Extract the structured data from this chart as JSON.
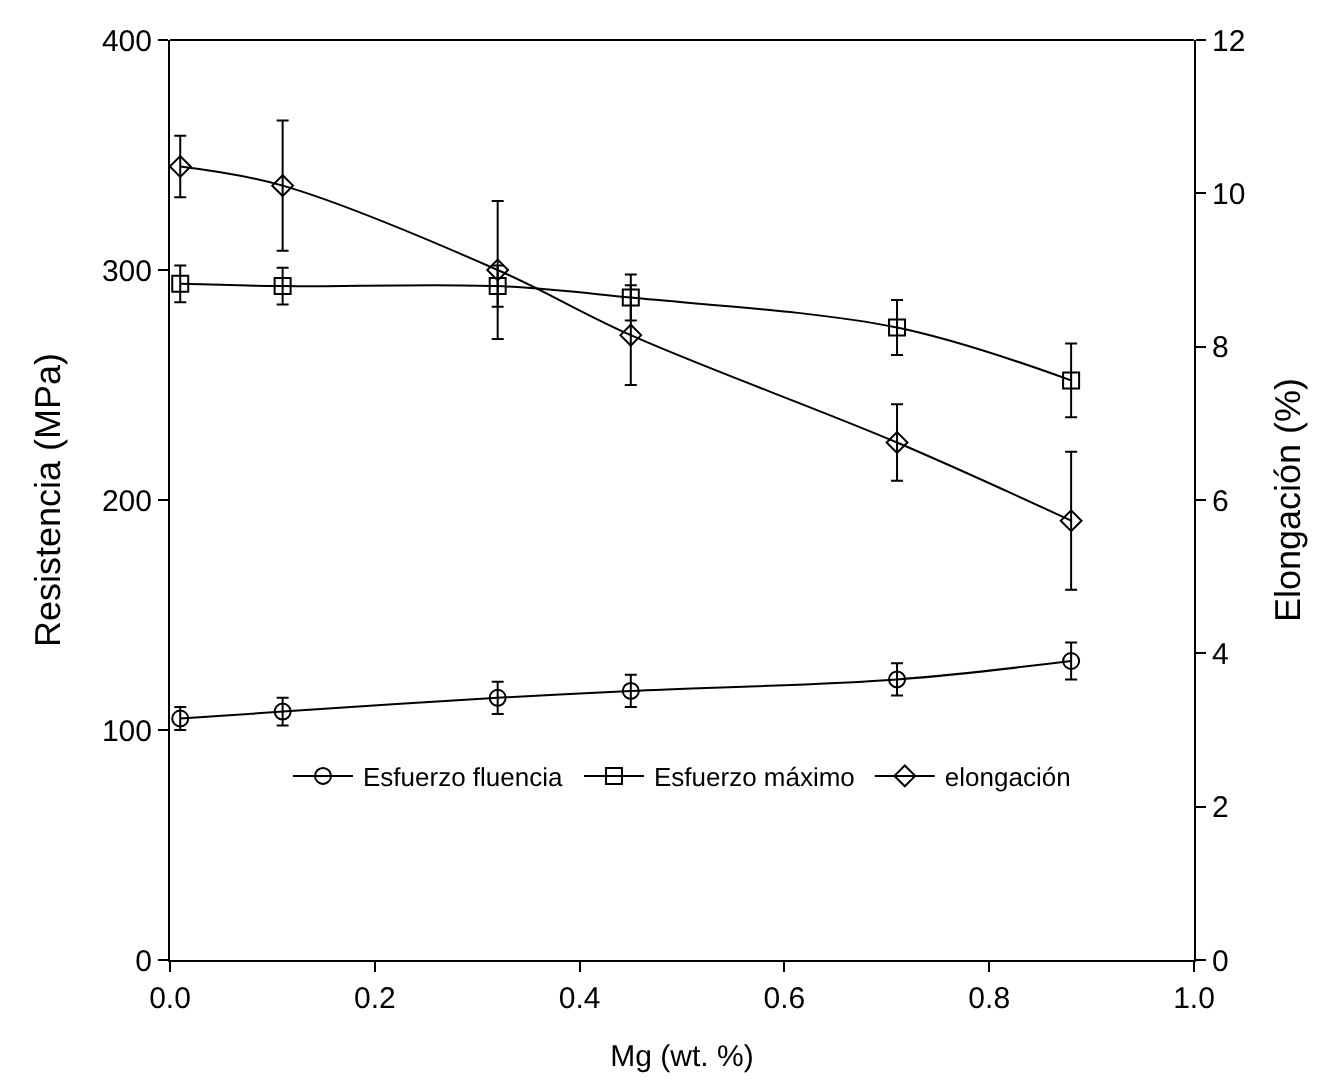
{
  "chart_data": {
    "type": "line",
    "xlabel": "Mg (wt. %)",
    "ylabel": "Resistencia (MPa)",
    "y2label": "Elongación (%)",
    "x": [
      0.01,
      0.11,
      0.32,
      0.45,
      0.71,
      0.88
    ],
    "series": [
      {
        "name": "Esfuerzo fluencia",
        "color": "#000000",
        "marker": "circle",
        "values": [
          105,
          108,
          114,
          117,
          122,
          130
        ],
        "errors": [
          5,
          6,
          7,
          7,
          7,
          8
        ]
      },
      {
        "name": "Esfuerzo máximo",
        "color": "#000000",
        "marker": "square",
        "values": [
          294,
          293,
          293,
          288,
          275,
          252
        ],
        "errors": [
          8,
          8,
          9,
          10,
          12,
          16
        ]
      },
      {
        "name": "elongación",
        "color": "#000000",
        "marker": "diamond",
        "axis": "y2",
        "values": [
          10.35,
          10.1,
          9.0,
          8.15,
          6.75,
          5.73
        ],
        "errors": [
          0.4,
          0.85,
          0.9,
          0.65,
          0.5,
          0.9
        ]
      }
    ],
    "xlim": [
      0,
      1
    ],
    "xticks": [
      {
        "value": 0,
        "label": "0.0"
      },
      {
        "value": 0.2,
        "label": "0.2"
      },
      {
        "value": 0.4,
        "label": "0.4"
      },
      {
        "value": 0.6,
        "label": "0.6"
      },
      {
        "value": 0.8,
        "label": "0.8"
      },
      {
        "value": 1,
        "label": "1.0"
      }
    ],
    "ylim": [
      0,
      400
    ],
    "yticks": [
      0,
      100,
      200,
      300,
      400
    ],
    "y2lim": [
      0,
      12
    ],
    "y2ticks": [
      0,
      2,
      4,
      6,
      8,
      10,
      12
    ],
    "legend": "bottom",
    "line_style": "solid"
  }
}
